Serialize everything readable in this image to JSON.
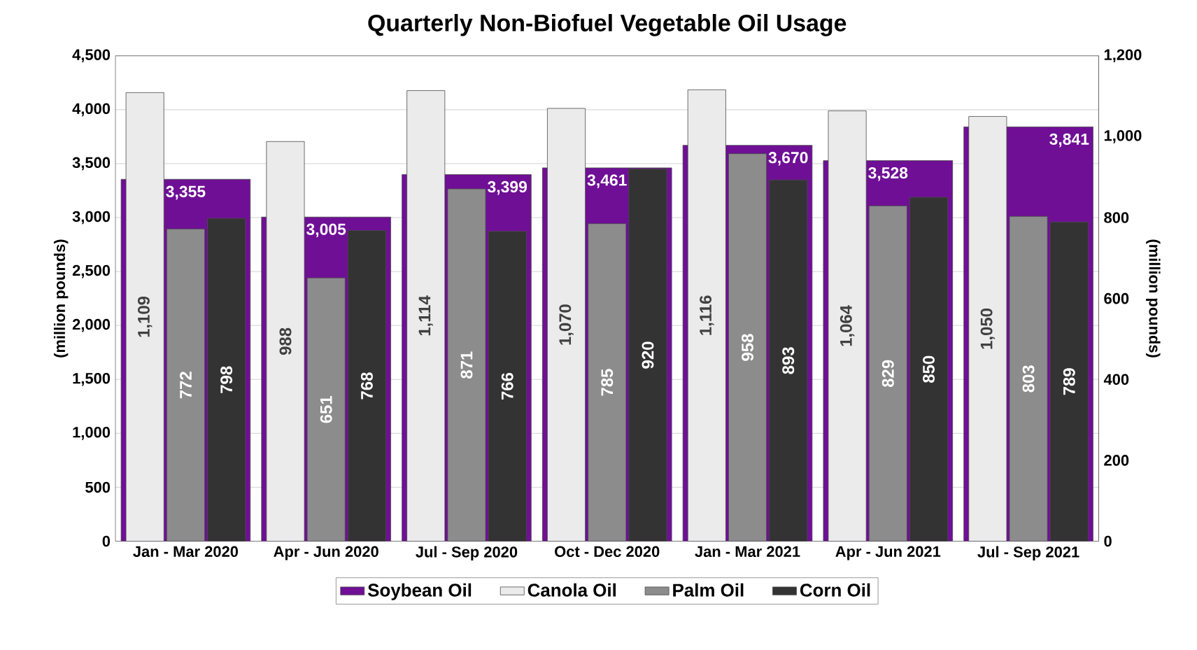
{
  "chart_data": {
    "type": "bar",
    "title": "Quarterly Non-Biofuel Vegetable Oil Usage",
    "categories": [
      "Jan - Mar 2020",
      "Apr - Jun 2020",
      "Jul - Sep 2020",
      "Oct - Dec 2020",
      "Jan - Mar 2021",
      "Apr - Jun 2021",
      "Jul - Sep 2021"
    ],
    "ylabel": "(million pounds)",
    "y2label": "(million pounds)",
    "ylim": [
      0,
      4500
    ],
    "yticks": [
      0,
      500,
      {
        "value": 1000,
        "label": "1,000"
      },
      {
        "value": 1500,
        "label": "1,500"
      },
      {
        "value": 2000,
        "label": "2,000"
      },
      {
        "value": 2500,
        "label": "2,500"
      },
      {
        "value": 3000,
        "label": "3,000"
      },
      {
        "value": 3500,
        "label": "3,500"
      },
      {
        "value": 4000,
        "label": "4,000"
      },
      {
        "value": 4500,
        "label": "4,500"
      }
    ],
    "y2lim": [
      0,
      1200
    ],
    "y2ticks": [
      0,
      200,
      400,
      600,
      800,
      {
        "value": 1000,
        "label": "1,000"
      },
      {
        "value": 1200,
        "label": "1,200"
      }
    ],
    "grid": "y",
    "legend": "bottom",
    "series": [
      {
        "name": "Soybean Oil",
        "color": "#6f0f96",
        "values": [
          3355,
          3005,
          3399,
          3461,
          3670,
          3528,
          3841
        ],
        "value_labels": [
          "3,355",
          "3,005",
          "3,399",
          "3,461",
          "3,670",
          "3,528",
          "3,841"
        ]
      },
      {
        "name": "Canola Oil",
        "color": "#ebebeb",
        "axis": "y2",
        "values": [
          1109,
          988,
          1114,
          1070,
          1116,
          1064,
          1050
        ],
        "value_labels": [
          "1,109",
          "988",
          "1,114",
          "1,070",
          "1,116",
          "1,064",
          "1,050"
        ]
      },
      {
        "name": "Palm Oil",
        "color": "#8c8c8c",
        "axis": "y2",
        "values": [
          772,
          651,
          871,
          785,
          958,
          829,
          803
        ],
        "value_labels": [
          "772",
          "651",
          "871",
          "785",
          "958",
          "829",
          "803"
        ]
      },
      {
        "name": "Corn Oil",
        "color": "#333333",
        "axis": "y2",
        "values": [
          798,
          768,
          766,
          920,
          893,
          850,
          789
        ],
        "value_labels": [
          "798",
          "768",
          "766",
          "920",
          "893",
          "850",
          "789"
        ]
      }
    ]
  }
}
